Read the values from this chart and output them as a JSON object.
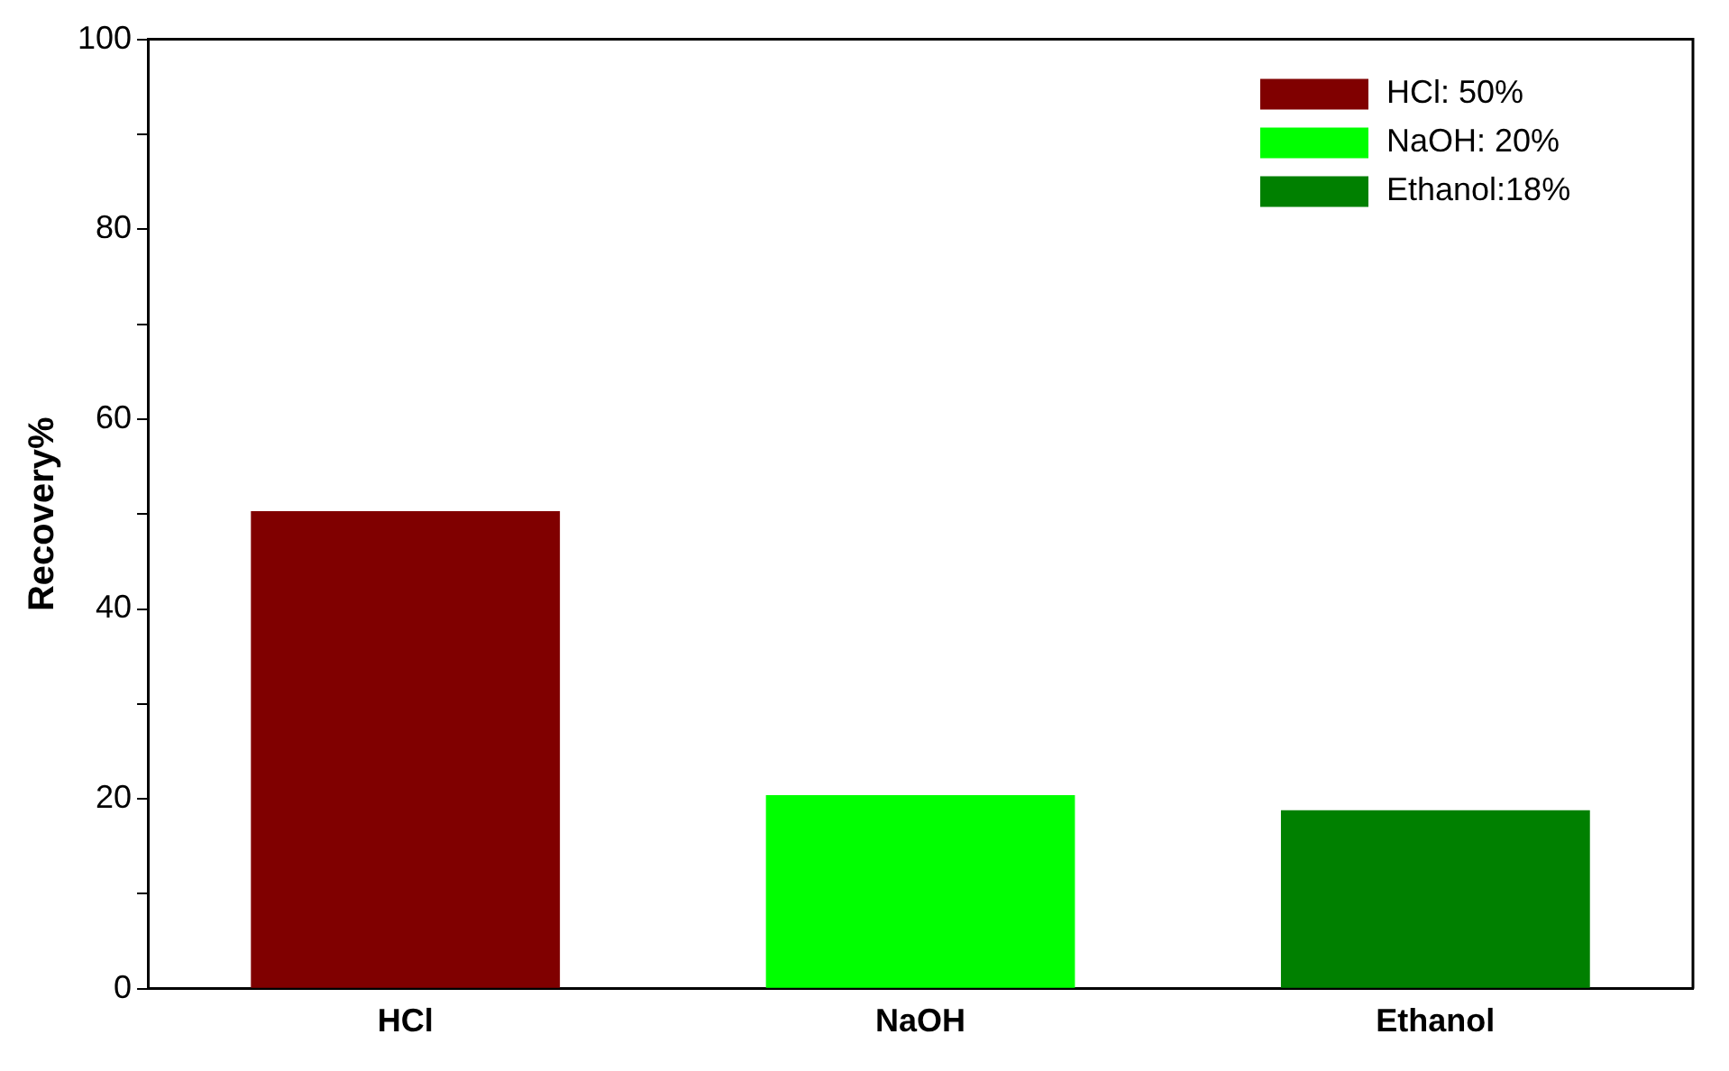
{
  "chart_data": {
    "type": "bar",
    "ylabel": "Recovery%",
    "categories": [
      "HCl",
      "NaOH",
      "Ethanol"
    ],
    "series": [
      {
        "name": "HCl: 50%",
        "color": "#800000",
        "values": [
          50.3,
          null,
          null
        ]
      },
      {
        "name": "NaOH: 20%",
        "color": "#00ff00",
        "values": [
          null,
          20.4,
          null
        ]
      },
      {
        "name": "Ethanol:18%",
        "color": "#008000",
        "values": [
          null,
          null,
          18.8
        ]
      }
    ],
    "ylim": [
      0,
      100
    ],
    "yticks": [
      0,
      {
        "value": 10,
        "label": null
      },
      20,
      {
        "value": 30,
        "label": null
      },
      40,
      {
        "value": 50,
        "label": null
      },
      60,
      {
        "value": 70,
        "label": null
      },
      80,
      {
        "value": 90,
        "label": null
      },
      100
    ],
    "grid": false,
    "legend": "top right"
  }
}
